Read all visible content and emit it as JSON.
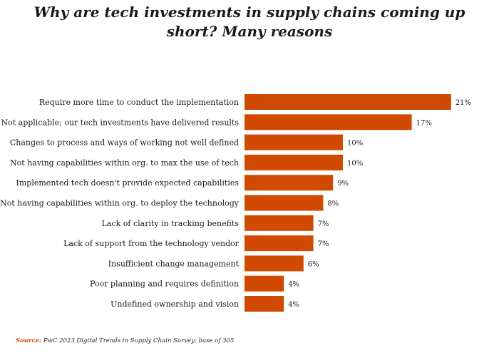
{
  "title_lines": [
    "Why are tech investments in supply chains coming up",
    "short? Many reasons"
  ],
  "source": {
    "label": "Source:",
    "text": " PwC 2023 Digital Trends in Supply Chain Survey; base of 305"
  },
  "colors": {
    "bar": "#d04a02",
    "text": "#1a1a1a"
  },
  "chart_data": {
    "type": "bar",
    "orientation": "horizontal",
    "categories": [
      "Require more time to conduct the implementation",
      "Not applicable; our tech investments have delivered results",
      "Changes to process and ways of working not well defined",
      "Not having capabilities within org. to max the use of tech",
      "Implemented tech doesn't provide expected capabilities",
      "Not having capabilities within org. to deploy the technology",
      "Lack of clarity in tracking benefits",
      "Lack of support from the technology vendor",
      "Insufficient change management",
      "Poor planning and requires definition",
      "Undefined ownership and vision"
    ],
    "values": [
      21,
      17,
      10,
      10,
      9,
      8,
      7,
      7,
      6,
      4,
      4
    ],
    "value_labels": [
      "21%",
      "17%",
      "10%",
      "10%",
      "9%",
      "8%",
      "7%",
      "7%",
      "6%",
      "4%",
      "4%"
    ],
    "grid": false,
    "legend": "none"
  }
}
